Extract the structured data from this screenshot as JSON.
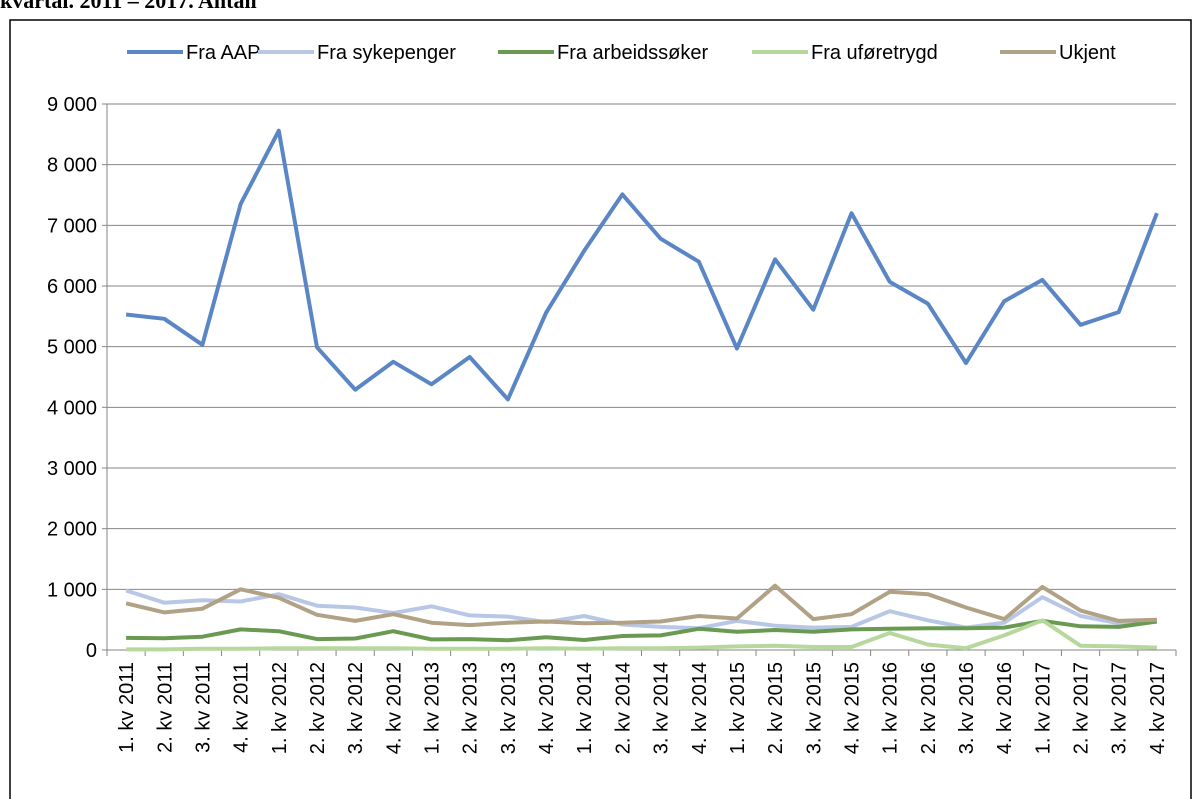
{
  "chart_data": {
    "type": "line",
    "title": "kvartal. 2011 – 2017. Antall",
    "categories": [
      "1. kv 2011",
      "2. kv 2011",
      "3. kv 2011",
      "4. kv 2011",
      "1. kv 2012",
      "2. kv 2012",
      "3. kv 2012",
      "4. kv 2012",
      "1. kv 2013",
      "2. kv 2013",
      "3. kv 2013",
      "4. kv 2013",
      "1. kv 2014",
      "2. kv 2014",
      "3. kv 2014",
      "4. kv 2014",
      "1. kv 2015",
      "2. kv 2015",
      "3. kv 2015",
      "4. kv 2015",
      "1. kv 2016",
      "2. kv 2016",
      "3. kv 2016",
      "4. kv 2016",
      "1. kv 2017",
      "2. kv 2017",
      "3. kv 2017",
      "4. kv 2017"
    ],
    "series": [
      {
        "name": "Fra AAP",
        "color": "#5a86c6",
        "values": [
          5530,
          5460,
          5030,
          7350,
          8560,
          4990,
          4290,
          4750,
          4380,
          4830,
          4130,
          5560,
          6580,
          7510,
          6780,
          6400,
          4970,
          6440,
          5610,
          7200,
          6070,
          5710,
          4730,
          5750,
          6100,
          5360,
          5570,
          7200
        ]
      },
      {
        "name": "Fra sykepenger",
        "color": "#b9c7e7",
        "values": [
          980,
          780,
          820,
          800,
          920,
          730,
          700,
          610,
          720,
          570,
          550,
          460,
          560,
          420,
          380,
          360,
          480,
          400,
          370,
          380,
          640,
          490,
          370,
          450,
          870,
          560,
          440,
          470
        ]
      },
      {
        "name": "Fra arbeidssøker",
        "color": "#6a9a52",
        "values": [
          200,
          195,
          220,
          340,
          310,
          180,
          190,
          310,
          175,
          180,
          160,
          210,
          165,
          230,
          240,
          350,
          300,
          330,
          300,
          340,
          350,
          360,
          360,
          370,
          480,
          390,
          380,
          470
        ]
      },
      {
        "name": "Fra uføretrygd",
        "color": "#b6d89c",
        "values": [
          10,
          10,
          20,
          20,
          30,
          30,
          30,
          30,
          20,
          20,
          20,
          30,
          20,
          30,
          30,
          40,
          60,
          70,
          50,
          50,
          280,
          90,
          30,
          240,
          490,
          70,
          60,
          40
        ]
      },
      {
        "name": "Ukjent",
        "color": "#b1a286",
        "values": [
          770,
          620,
          680,
          1000,
          860,
          580,
          480,
          590,
          450,
          410,
          450,
          470,
          440,
          450,
          470,
          560,
          520,
          1060,
          510,
          590,
          960,
          920,
          700,
          510,
          1040,
          650,
          480,
          500
        ]
      }
    ],
    "ylim": [
      0,
      9000
    ],
    "yticks": [
      0,
      {
        "value": 1000,
        "label": "1 000"
      },
      {
        "value": 2000,
        "label": "2 000"
      },
      {
        "value": 3000,
        "label": "3 000"
      },
      {
        "value": 4000,
        "label": "4 000"
      },
      {
        "value": 5000,
        "label": "5 000"
      },
      {
        "value": 6000,
        "label": "6 000"
      },
      {
        "value": 7000,
        "label": "7 000"
      },
      {
        "value": 8000,
        "label": "8 000"
      },
      {
        "value": 9000,
        "label": "9 000"
      }
    ],
    "grid": true,
    "legend": "top"
  }
}
